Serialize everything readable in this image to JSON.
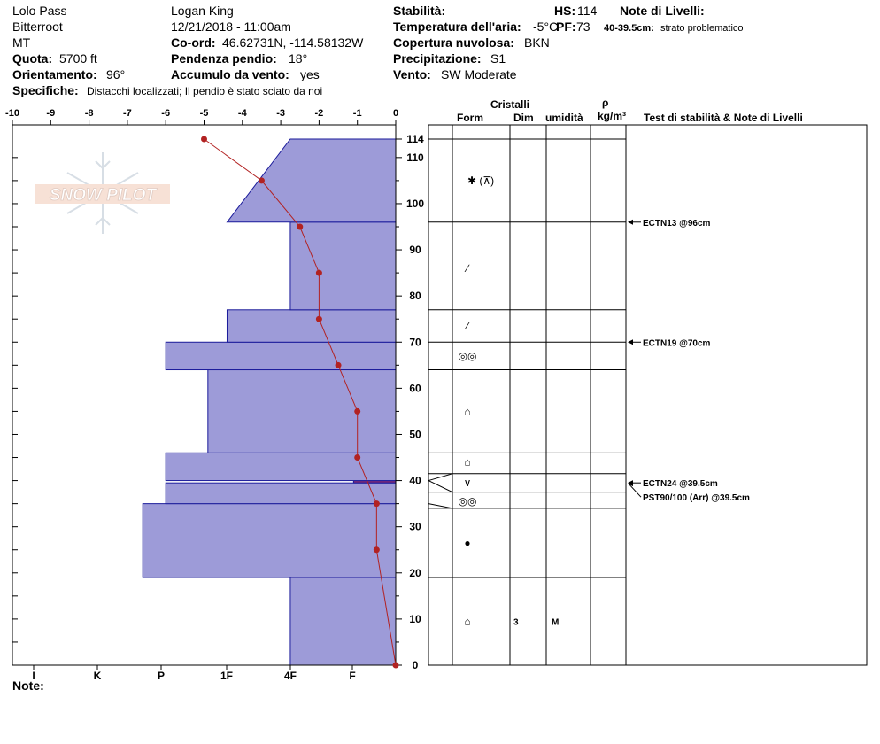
{
  "header": {
    "location": "Lolo Pass",
    "range": "Bitterroot",
    "state": "MT",
    "elevation_label": "Quota:",
    "elevation_value": "5700 ft",
    "aspect_label": "Orientamento:",
    "aspect_value": "96°",
    "details_label": "Specifiche:",
    "details_value": "Distacchi localizzati;  Il pendio è stato sciato da noi",
    "observer": "Logan King",
    "datetime": "12/21/2018 - 11:00am",
    "coord_label": "Co-ord:",
    "coord_value": "46.62731N, -114.58132W",
    "slope_label": "Pendenza pendio:",
    "slope_value": "18°",
    "wind_loading_label": "Accumulo da vento:",
    "wind_loading_value": "yes",
    "stability_label": "Stabilità:",
    "air_temp_label": "Temperatura dell'aria:",
    "air_temp_value": "-5°C",
    "sky_label": "Copertura nuvolosa:",
    "sky_value": "BKN",
    "precip_label": "Precipitazione:",
    "precip_value": "S1",
    "wind_label": "Vento:",
    "wind_value": "SW Moderate",
    "hs_label": "HS:",
    "hs_value": "114",
    "pf_label": "PF:",
    "pf_value": "73",
    "layer_notes_label": "Note di Livelli:",
    "layer_note_range": "40-39.5cm:",
    "layer_note_text": "strato problematico",
    "notes_label": "Note:"
  },
  "columns": {
    "crystals": "Cristalli",
    "form": "Form",
    "size": "Dim",
    "moisture": "umidità",
    "rho": "ρ",
    "density_unit": "kg/m³",
    "tests": "Test di stabilità & Note di Livelli"
  },
  "watermark": "SNOW PILOT",
  "chart_data": {
    "type": "snow-profile",
    "depth_axis": {
      "min": 0,
      "max": 114,
      "ticks": [
        0,
        10,
        20,
        30,
        40,
        50,
        60,
        70,
        80,
        90,
        100,
        110,
        114
      ]
    },
    "temperature_axis": {
      "min": -10,
      "max": 0,
      "ticks": [
        "-10",
        "-9",
        "-8",
        "-7",
        "-6",
        "-5",
        "-4",
        "-3",
        "-2",
        "-1",
        "0"
      ]
    },
    "hardness_labels": [
      "I",
      "K",
      "P",
      "1F",
      "4F",
      "F"
    ],
    "hardness_layers": [
      {
        "bottom": 0,
        "top": 19,
        "left_temp": -2.75
      },
      {
        "bottom": 19,
        "top": 35,
        "left_temp": -6.6
      },
      {
        "bottom": 35,
        "top": 39.5,
        "left_temp": -6.0
      },
      {
        "bottom": 39.5,
        "top": 40,
        "left_temp": -1.1,
        "color": "#7a2a7a"
      },
      {
        "bottom": 40,
        "top": 46,
        "left_temp": -6.0
      },
      {
        "bottom": 46,
        "top": 64,
        "left_temp": -4.9
      },
      {
        "bottom": 64,
        "top": 70,
        "left_temp": -6.0
      },
      {
        "bottom": 70,
        "top": 77,
        "left_temp": -4.4
      },
      {
        "bottom": 77,
        "top": 96,
        "left_temp": -2.75
      },
      {
        "bottom": 96,
        "top": 114,
        "left_bottom_temp": -4.4,
        "left_top_temp": -2.75
      }
    ],
    "temperature_profile": [
      {
        "depth": 0,
        "temp": 0
      },
      {
        "depth": 25,
        "temp": -0.5
      },
      {
        "depth": 35,
        "temp": -0.5
      },
      {
        "depth": 45,
        "temp": -1
      },
      {
        "depth": 55,
        "temp": -1
      },
      {
        "depth": 65,
        "temp": -1.5
      },
      {
        "depth": 75,
        "temp": -2
      },
      {
        "depth": 85,
        "temp": -2
      },
      {
        "depth": 95,
        "temp": -2.5
      },
      {
        "depth": 105,
        "temp": -3.5
      },
      {
        "depth": 114,
        "temp": -5
      }
    ],
    "layer_boundaries": [
      114,
      96,
      77,
      70,
      64,
      46,
      41.5,
      37.5,
      34,
      19
    ],
    "crystal_forms": [
      {
        "depth": 105,
        "symbol": "✱ (⊼)"
      },
      {
        "depth": 86,
        "symbol": "∕"
      },
      {
        "depth": 73.5,
        "symbol": "∕"
      },
      {
        "depth": 67,
        "symbol": "◎◎"
      },
      {
        "depth": 55,
        "symbol": "⌂"
      },
      {
        "depth": 44,
        "symbol": "⌂"
      },
      {
        "depth": 39.5,
        "symbol": "∨"
      },
      {
        "depth": 35.5,
        "symbol": "◎◎"
      },
      {
        "depth": 26.5,
        "symbol": "●"
      },
      {
        "depth": 9.5,
        "symbol": "⌂",
        "size": "3",
        "moisture": "M"
      }
    ],
    "stability_tests": [
      {
        "depth": 96,
        "label": "ECTN13 @96cm"
      },
      {
        "depth": 70,
        "label": "ECTN19 @70cm"
      },
      {
        "depth": 39.5,
        "label": "ECTN24 @39.5cm"
      },
      {
        "depth": 39.5,
        "label": "PST90/100 (Arr) @39.5cm",
        "offset": true
      }
    ]
  }
}
